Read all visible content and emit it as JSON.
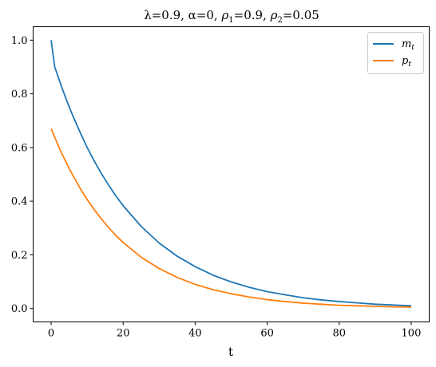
{
  "chart_data": {
    "type": "line",
    "title_parts": {
      "lambda": "λ=0.9, ",
      "alpha": "α=0, ",
      "rho1_sym": "ρ",
      "rho1_sub": "1",
      "rho1_val": "=0.9, ",
      "rho2_sym": "ρ",
      "rho2_sub": "2",
      "rho2_val": "=0.05"
    },
    "xlabel": "t",
    "ylabel": "",
    "xlim": [
      -5,
      105
    ],
    "ylim": [
      -0.05,
      1.05
    ],
    "xticks": [
      0,
      20,
      40,
      60,
      80,
      100
    ],
    "yticks": [
      0.0,
      0.2,
      0.4,
      0.6,
      0.8,
      1.0
    ],
    "xtick_labels": [
      "0",
      "20",
      "40",
      "60",
      "80",
      "100"
    ],
    "ytick_labels": [
      "0.0",
      "0.2",
      "0.4",
      "0.6",
      "0.8",
      "1.0"
    ],
    "grid": false,
    "legend_position": "top-right",
    "series": [
      {
        "name": "m_t",
        "legend_base": "m",
        "legend_sub": "t",
        "color": "#1f77b4",
        "x": [
          0,
          1,
          2,
          3,
          4,
          5,
          6,
          8,
          10,
          12,
          14,
          16,
          18,
          20,
          25,
          30,
          35,
          40,
          45,
          50,
          55,
          60,
          65,
          70,
          75,
          80,
          85,
          90,
          95,
          100
        ],
        "y": [
          1.0,
          0.9,
          0.861,
          0.823,
          0.786,
          0.752,
          0.719,
          0.658,
          0.6,
          0.549,
          0.502,
          0.459,
          0.419,
          0.383,
          0.306,
          0.244,
          0.195,
          0.156,
          0.124,
          0.099,
          0.079,
          0.063,
          0.051,
          0.04,
          0.032,
          0.026,
          0.021,
          0.016,
          0.013,
          0.01
        ]
      },
      {
        "name": "p_t",
        "legend_base": "p",
        "legend_sub": "t",
        "color": "#ff7f0e",
        "x": [
          0,
          1,
          2,
          3,
          4,
          5,
          6,
          8,
          10,
          12,
          14,
          16,
          18,
          20,
          25,
          30,
          35,
          40,
          45,
          50,
          55,
          60,
          65,
          70,
          75,
          80,
          85,
          90,
          95,
          100
        ],
        "y": [
          0.67,
          0.638,
          0.607,
          0.577,
          0.549,
          0.522,
          0.497,
          0.449,
          0.406,
          0.368,
          0.333,
          0.301,
          0.272,
          0.246,
          0.191,
          0.149,
          0.116,
          0.09,
          0.07,
          0.055,
          0.043,
          0.033,
          0.026,
          0.02,
          0.016,
          0.012,
          0.01,
          0.008,
          0.006,
          0.005
        ]
      }
    ]
  }
}
